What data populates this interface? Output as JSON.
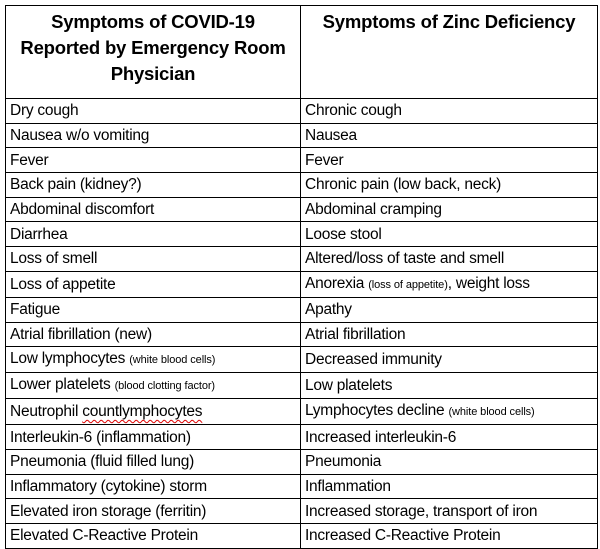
{
  "headers": [
    "Symptoms of COVID-19 Reported by Emergency Room Physician",
    "Symptoms of Zinc Deficiency"
  ],
  "rows": [
    [
      {
        "main": "Dry cough"
      },
      {
        "main": "Chronic cough"
      }
    ],
    [
      {
        "main": "Nausea w/o vomiting"
      },
      {
        "main": "Nausea"
      }
    ],
    [
      {
        "main": "Fever"
      },
      {
        "main": "Fever"
      }
    ],
    [
      {
        "main": "Back pain (kidney?)"
      },
      {
        "main": "Chronic pain (low back, neck)"
      }
    ],
    [
      {
        "main": "Abdominal discomfort"
      },
      {
        "main": "Abdominal cramping"
      }
    ],
    [
      {
        "main": "Diarrhea"
      },
      {
        "main": "Loose stool"
      }
    ],
    [
      {
        "main": "Loss of smell"
      },
      {
        "main": "Altered/loss of taste and smell"
      }
    ],
    [
      {
        "main": "Loss of appetite"
      },
      {
        "main": "Anorexia ",
        "small": "(loss of appetite)",
        "after": ", weight loss"
      }
    ],
    [
      {
        "main": "Fatigue"
      },
      {
        "main": "Apathy"
      }
    ],
    [
      {
        "main": "Atrial fibrillation (new)"
      },
      {
        "main": "Atrial fibrillation"
      }
    ],
    [
      {
        "main": "Low lymphocytes ",
        "small": "(white blood cells)"
      },
      {
        "main": "Decreased immunity"
      }
    ],
    [
      {
        "main": "Lower platelets ",
        "small": "(blood clotting factor)"
      },
      {
        "main": "Low platelets"
      }
    ],
    [
      {
        "main": "Neutrophil ",
        "spell": "countlymphocytes"
      },
      {
        "main": "Lymphocytes decline ",
        "small": "(white blood cells)"
      }
    ],
    [
      {
        "main": "Interleukin-6 (inflammation)"
      },
      {
        "main": "Increased interleukin-6"
      }
    ],
    [
      {
        "main": "Pneumonia (fluid filled lung)"
      },
      {
        "main": "Pneumonia"
      }
    ],
    [
      {
        "main": "Inflammatory (cytokine) storm"
      },
      {
        "main": "Inflammation"
      }
    ],
    [
      {
        "main": "Elevated iron storage (ferritin)"
      },
      {
        "main": "Increased storage, transport of iron"
      }
    ],
    [
      {
        "main": "Elevated C-Reactive Protein"
      },
      {
        "main": "Increased C-Reactive Protein"
      }
    ]
  ]
}
